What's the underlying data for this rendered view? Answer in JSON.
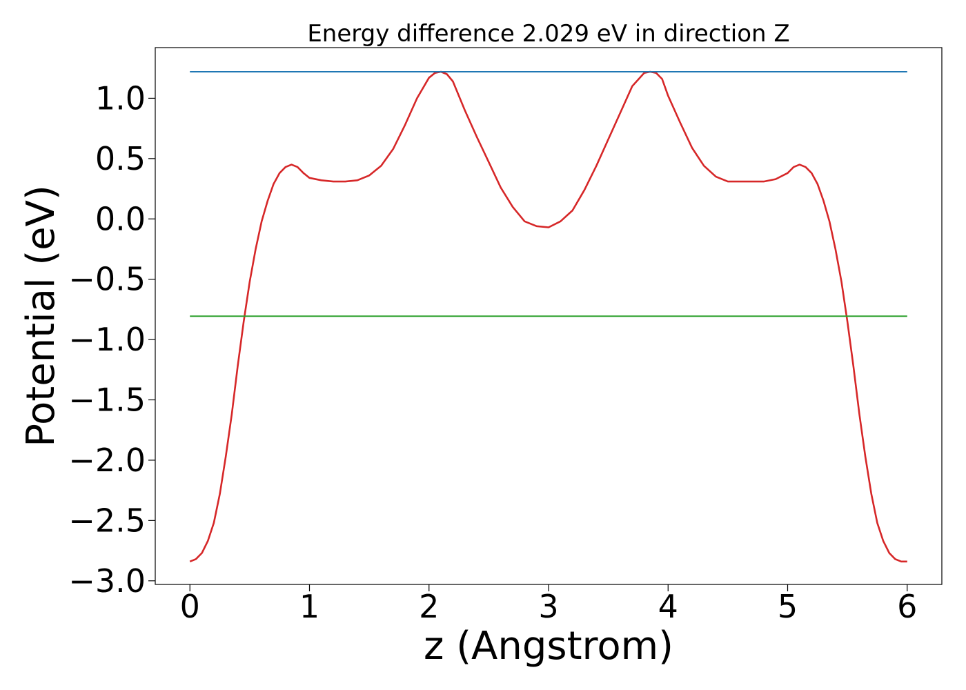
{
  "chart_data": {
    "type": "line",
    "title": "Energy difference 2.029 eV in direction Z",
    "xlabel": "z (Angstrom)",
    "ylabel": "Potential (eV)",
    "xlim": [
      -0.29,
      6.29
    ],
    "ylim": [
      -3.03,
      1.42
    ],
    "xticks": [
      0,
      1,
      2,
      3,
      4,
      5,
      6
    ],
    "xtick_labels": [
      "0",
      "1",
      "2",
      "3",
      "4",
      "5",
      "6"
    ],
    "yticks": [
      1.0,
      0.5,
      0.0,
      -0.5,
      -1.0,
      -1.5,
      -2.0,
      -2.5,
      -3.0
    ],
    "ytick_labels": [
      "1.0",
      "0.5",
      "0.0",
      "−0.5",
      "−1.0",
      "−1.5",
      "−2.0",
      "−2.5",
      "−3.0"
    ],
    "grid": false,
    "series": [
      {
        "color": "#d62728",
        "x": [
          0,
          0.05,
          0.1,
          0.15,
          0.2,
          0.25,
          0.3,
          0.35,
          0.4,
          0.45,
          0.5,
          0.55,
          0.6,
          0.65,
          0.7,
          0.75,
          0.8,
          0.85,
          0.9,
          0.95,
          1.0,
          1.1,
          1.2,
          1.3,
          1.4,
          1.5,
          1.6,
          1.7,
          1.8,
          1.9,
          2.0,
          2.05,
          2.1,
          2.15,
          2.2,
          2.3,
          2.4,
          2.5,
          2.6,
          2.7,
          2.8,
          2.9,
          3.0,
          3.1,
          3.2,
          3.3,
          3.4,
          3.5,
          3.6,
          3.7,
          3.8,
          3.85,
          3.9,
          3.95,
          4.0,
          4.1,
          4.2,
          4.3,
          4.4,
          4.5,
          4.6,
          4.7,
          4.8,
          4.9,
          5.0,
          5.05,
          5.1,
          5.15,
          5.2,
          5.25,
          5.3,
          5.35,
          5.4,
          5.45,
          5.5,
          5.55,
          5.6,
          5.65,
          5.7,
          5.75,
          5.8,
          5.85,
          5.9,
          5.95,
          6.0
        ],
        "y": [
          -2.84,
          -2.82,
          -2.77,
          -2.67,
          -2.52,
          -2.28,
          -1.97,
          -1.62,
          -1.22,
          -0.85,
          -0.52,
          -0.25,
          -0.02,
          0.15,
          0.29,
          0.38,
          0.43,
          0.45,
          0.43,
          0.38,
          0.34,
          0.32,
          0.31,
          0.31,
          0.32,
          0.36,
          0.44,
          0.58,
          0.78,
          1.0,
          1.17,
          1.21,
          1.22,
          1.2,
          1.14,
          0.9,
          0.68,
          0.47,
          0.26,
          0.1,
          -0.02,
          -0.06,
          -0.07,
          -0.02,
          0.07,
          0.24,
          0.44,
          0.66,
          0.88,
          1.1,
          1.21,
          1.22,
          1.21,
          1.16,
          1.02,
          0.8,
          0.59,
          0.44,
          0.35,
          0.31,
          0.31,
          0.31,
          0.31,
          0.33,
          0.38,
          0.43,
          0.45,
          0.43,
          0.38,
          0.29,
          0.15,
          -0.02,
          -0.25,
          -0.52,
          -0.85,
          -1.22,
          -1.62,
          -1.97,
          -2.28,
          -2.52,
          -2.67,
          -2.77,
          -2.82,
          -2.84,
          -2.84
        ]
      },
      {
        "color": "#1f77b4",
        "x": [
          0,
          6
        ],
        "y": [
          1.22,
          1.22
        ]
      },
      {
        "color": "#2ca02c",
        "x": [
          0,
          6
        ],
        "y": [
          -0.807,
          -0.807
        ]
      }
    ]
  }
}
